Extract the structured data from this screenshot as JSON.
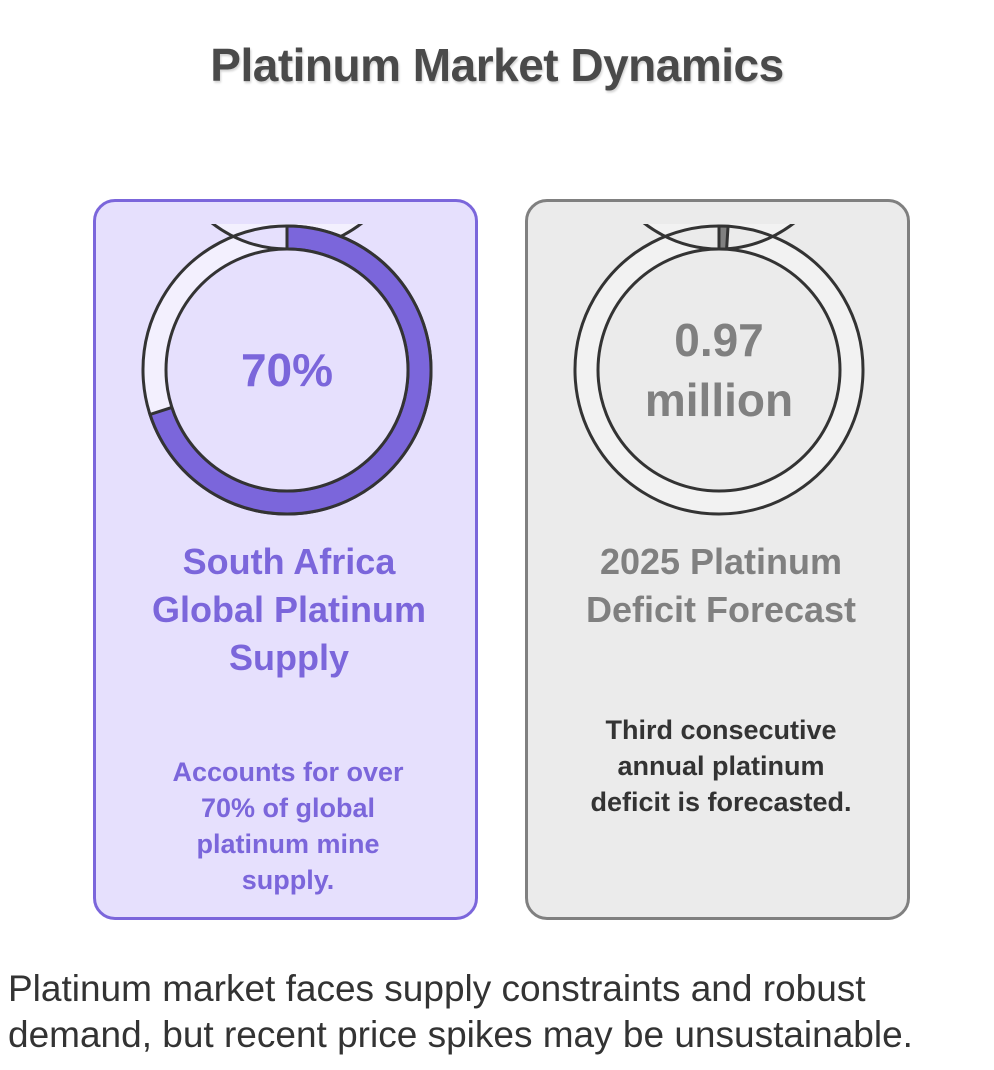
{
  "title": "Platinum Market Dynamics",
  "colors": {
    "left_accent": "#7b66db",
    "left_background": "#e6e0fd",
    "right_accent": "#808080",
    "right_background": "#ebebeb",
    "title_color": "#4a4a4a"
  },
  "cards": [
    {
      "value_text": "70%",
      "fill_fraction": 0.7,
      "heading": "South Africa Global Platinum Supply",
      "description": "Accounts for over 70% of global platinum mine supply."
    },
    {
      "value_text": "0.97 million",
      "fill_fraction": 0.01,
      "heading": "2025 Platinum Deficit Forecast",
      "description": "Third consecutive annual platinum deficit is forecasted."
    }
  ],
  "summary": "Platinum market faces supply constraints and robust demand, but recent price spikes may be unsustainable."
}
